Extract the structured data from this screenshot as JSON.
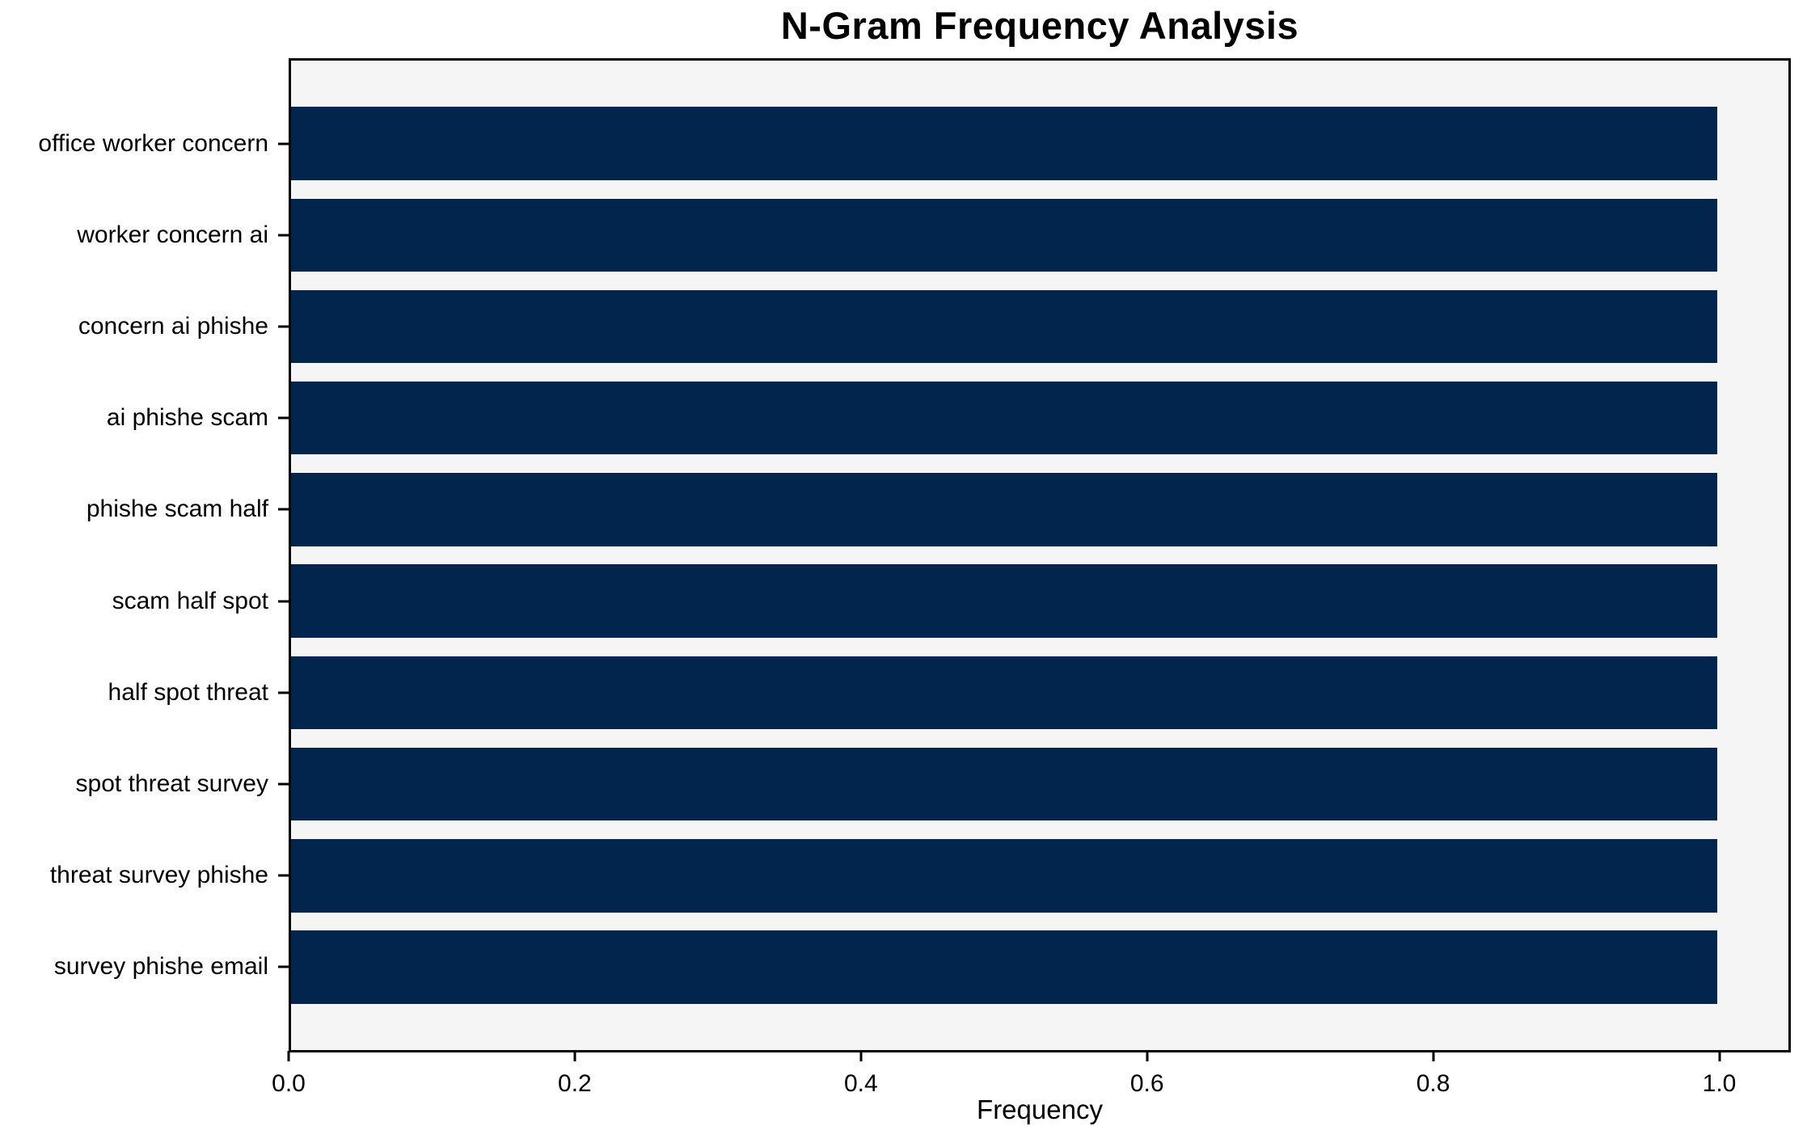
{
  "title": "N-Gram Frequency Analysis",
  "colors": {
    "bar": "#02254e",
    "plot_background": "#f5f5f5",
    "figure_background": "#ffffff",
    "axis": "#000000",
    "text": "#000000"
  },
  "chart_data": {
    "type": "bar",
    "orientation": "horizontal",
    "title": "N-Gram Frequency Analysis",
    "xlabel": "Frequency",
    "ylabel": "",
    "categories": [
      "office worker concern",
      "worker concern ai",
      "concern ai phishe",
      "ai phishe scam",
      "phishe scam half",
      "scam half spot",
      "half spot threat",
      "spot threat survey",
      "threat survey phishe",
      "survey phishe email"
    ],
    "values": [
      1.0,
      1.0,
      1.0,
      1.0,
      1.0,
      1.0,
      1.0,
      1.0,
      1.0,
      1.0
    ],
    "bar_color": "#02254e",
    "xlim": [
      0,
      1.05
    ],
    "xticks": [
      0.0,
      0.2,
      0.4,
      0.6,
      0.8,
      1.0
    ],
    "xtick_labels": [
      "0.0",
      "0.2",
      "0.4",
      "0.6",
      "0.8",
      "1.0"
    ],
    "grid": false,
    "legend_position": "none",
    "bar_height_fraction": 0.8
  }
}
